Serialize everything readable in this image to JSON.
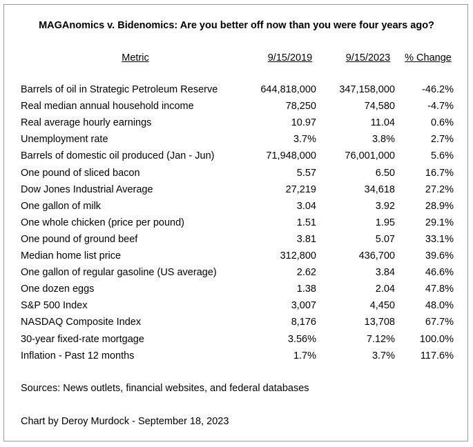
{
  "title": "MAGAnomics v. Bidenomics: Are you better off now than you were four years ago?",
  "table": {
    "headers": [
      "Metric",
      "9/15/2019",
      "9/15/2023",
      "% Change"
    ],
    "rows": [
      [
        "Barrels of oil in Strategic Petroleum Reserve",
        "644,818,000",
        "347,158,000",
        "-46.2%"
      ],
      [
        "Real median annual household income",
        "78,250",
        "74,580",
        "-4.7%"
      ],
      [
        "Real average hourly earnings",
        "10.97",
        "11.04",
        "0.6%"
      ],
      [
        "Unemployment rate",
        "3.7%",
        "3.8%",
        "2.7%"
      ],
      [
        "Barrels of domestic oil produced (Jan - Jun)",
        "71,948,000",
        "76,001,000",
        "5.6%"
      ],
      [
        "One pound of sliced bacon",
        "5.57",
        "6.50",
        "16.7%"
      ],
      [
        "Dow Jones Industrial Average",
        "27,219",
        "34,618",
        "27.2%"
      ],
      [
        "One gallon of milk",
        "3.04",
        "3.92",
        "28.9%"
      ],
      [
        "One whole chicken (price per pound)",
        "1.51",
        "1.95",
        "29.1%"
      ],
      [
        "One pound of ground beef",
        "3.81",
        "5.07",
        "33.1%"
      ],
      [
        "Median home list price",
        "312,800",
        "436,700",
        "39.6%"
      ],
      [
        "One gallon of regular gasoline (US average)",
        "2.62",
        "3.84",
        "46.6%"
      ],
      [
        "One dozen eggs",
        "1.38",
        "2.04",
        "47.8%"
      ],
      [
        "S&P 500 Index",
        "3,007",
        "4,450",
        "48.0%"
      ],
      [
        "NASDAQ Composite Index",
        "8,176",
        "13,708",
        "67.7%"
      ],
      [
        "30-year fixed-rate mortgage",
        "3.56%",
        "7.12%",
        "100.0%"
      ],
      [
        "Inflation - Past 12 months",
        "1.7%",
        "3.7%",
        "117.6%"
      ]
    ]
  },
  "sources": "Sources: News outlets, financial websites, and federal databases",
  "credit": "Chart by Deroy Murdock - September 18, 2023"
}
